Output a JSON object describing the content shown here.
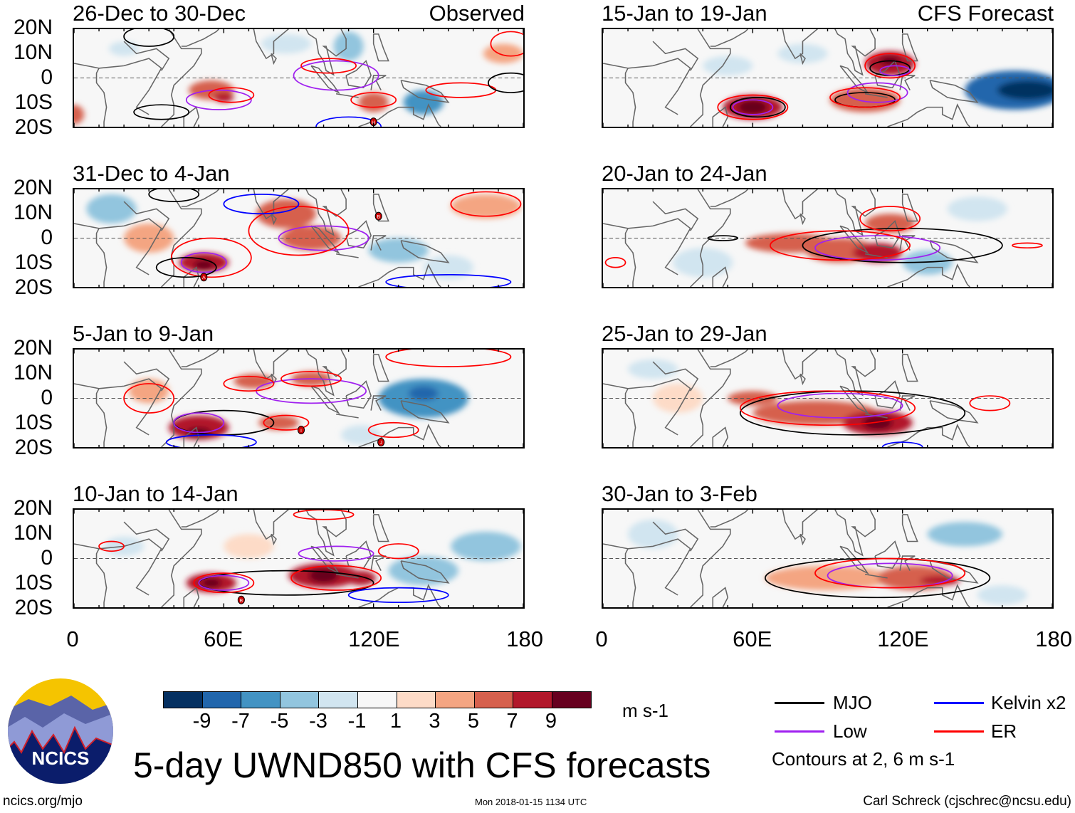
{
  "title": "5-day UWND850 with CFS forecasts",
  "footer": {
    "url": "ncics.org/mjo",
    "timestamp": "Mon 2018-01-15 1134 UTC",
    "author": "Carl Schreck (cjschrec@ncsu.edu)",
    "logo_text": "NCICS"
  },
  "colorbar": {
    "units": "m s-1",
    "ticks": [
      "-9",
      "-7",
      "-5",
      "-3",
      "-1",
      "1",
      "3",
      "5",
      "7",
      "9"
    ],
    "colors": [
      "#053061",
      "#2166ac",
      "#4393c3",
      "#92c5de",
      "#d1e5f0",
      "#f7f7f7",
      "#fddbc7",
      "#f4a582",
      "#d6604d",
      "#b2182b",
      "#67001f"
    ]
  },
  "legend": {
    "items": [
      {
        "label": "MJO",
        "color": "#000000"
      },
      {
        "label": "Kelvin x2",
        "color": "#0000ff"
      },
      {
        "label": "Low",
        "color": "#a020f0"
      },
      {
        "label": "ER",
        "color": "#ff0000"
      }
    ],
    "note": "Contours at 2, 6 m s-1"
  },
  "axes": {
    "lat_labels": [
      "20N",
      "10N",
      "0",
      "10S",
      "20S"
    ],
    "lon_labels": [
      "0",
      "60E",
      "120E",
      "180"
    ],
    "lon_range": [
      0,
      180
    ],
    "lat_range": [
      -20,
      20
    ]
  },
  "panels": [
    {
      "title": "26-Dec to 30-Dec",
      "tag": "Observed",
      "blobs": [
        [
          55,
          -5,
          9,
          4,
          5
        ],
        [
          60,
          -8,
          4,
          2,
          8
        ],
        [
          120,
          -10,
          6,
          4,
          6
        ],
        [
          0,
          -15,
          4,
          4,
          6
        ],
        [
          172,
          10,
          8,
          4,
          4
        ],
        [
          110,
          13,
          6,
          6,
          -5
        ],
        [
          140,
          -10,
          8,
          5,
          -6
        ],
        [
          20,
          12,
          6,
          3,
          -3
        ],
        [
          85,
          14,
          10,
          4,
          -2
        ]
      ],
      "contours": [
        [
          "low",
          58,
          -9,
          13,
          4
        ],
        [
          "low",
          105,
          1,
          17,
          6
        ],
        [
          "er",
          63,
          -7,
          9,
          3
        ],
        [
          "er",
          102,
          5,
          11,
          3
        ],
        [
          "er",
          120,
          -9,
          9,
          3
        ],
        [
          "er",
          155,
          -5,
          14,
          3
        ],
        [
          "mjo",
          35,
          -14,
          11,
          3
        ],
        [
          "mjo",
          175,
          -2,
          9,
          4
        ],
        [
          "mjo",
          30,
          17,
          10,
          4
        ],
        [
          "kelvin",
          110,
          -20,
          13,
          4
        ],
        [
          "er",
          175,
          14,
          8,
          5
        ]
      ],
      "markers": [
        [
          120,
          -18,
          "H"
        ]
      ]
    },
    {
      "title": "31-Dec to 4-Jan",
      "tag": "",
      "blobs": [
        [
          85,
          10,
          12,
          6,
          6
        ],
        [
          95,
          0,
          12,
          5,
          6
        ],
        [
          52,
          -10,
          10,
          4,
          7
        ],
        [
          52,
          -11,
          4,
          2,
          9
        ],
        [
          30,
          0,
          10,
          6,
          3
        ],
        [
          165,
          13,
          14,
          5,
          4
        ],
        [
          15,
          12,
          10,
          6,
          -5
        ],
        [
          130,
          -5,
          12,
          5,
          -4
        ],
        [
          150,
          -12,
          10,
          5,
          -3
        ]
      ],
      "contours": [
        [
          "low",
          52,
          -10,
          9,
          4
        ],
        [
          "low",
          100,
          0,
          18,
          5
        ],
        [
          "er",
          55,
          -8,
          16,
          8
        ],
        [
          "er",
          90,
          3,
          20,
          10
        ],
        [
          "er",
          165,
          14,
          14,
          5
        ],
        [
          "mjo",
          45,
          -12,
          12,
          4
        ],
        [
          "mjo",
          40,
          18,
          10,
          3
        ],
        [
          "kelvin",
          75,
          14,
          15,
          4
        ],
        [
          "kelvin",
          150,
          -18,
          25,
          3
        ]
      ],
      "markers": [
        [
          122,
          9,
          "B"
        ],
        [
          52,
          -16,
          "A"
        ]
      ]
    },
    {
      "title": "5-Jan to 9-Jan",
      "tag": "",
      "blobs": [
        [
          50,
          -12,
          12,
          5,
          7
        ],
        [
          50,
          -14,
          5,
          2,
          9
        ],
        [
          72,
          7,
          8,
          3,
          5
        ],
        [
          95,
          8,
          8,
          3,
          5
        ],
        [
          82,
          -10,
          8,
          3,
          5
        ],
        [
          30,
          3,
          8,
          5,
          3
        ],
        [
          140,
          0,
          18,
          8,
          -6
        ],
        [
          140,
          2,
          6,
          3,
          -9
        ],
        [
          115,
          -15,
          8,
          4,
          -3
        ]
      ],
      "contours": [
        [
          "mjo",
          60,
          -10,
          20,
          5
        ],
        [
          "low",
          50,
          -10,
          10,
          4
        ],
        [
          "low",
          95,
          3,
          22,
          5
        ],
        [
          "er",
          70,
          6,
          10,
          3
        ],
        [
          "er",
          95,
          8,
          12,
          3
        ],
        [
          "er",
          30,
          0,
          10,
          6
        ],
        [
          "er",
          85,
          -10,
          9,
          3
        ],
        [
          "er",
          128,
          -13,
          10,
          3
        ],
        [
          "kelvin",
          55,
          -18,
          18,
          3
        ],
        [
          "er",
          150,
          17,
          25,
          4
        ]
      ],
      "markers": [
        [
          91,
          -13,
          "I"
        ],
        [
          123,
          -18,
          "J"
        ]
      ]
    },
    {
      "title": "10-Jan to 14-Jan",
      "tag": "",
      "blobs": [
        [
          55,
          -10,
          10,
          4,
          7
        ],
        [
          55,
          -10,
          4,
          2,
          9
        ],
        [
          100,
          -7,
          14,
          5,
          7
        ],
        [
          100,
          -7,
          6,
          3,
          9
        ],
        [
          115,
          -8,
          6,
          3,
          7
        ],
        [
          140,
          -5,
          14,
          6,
          -4
        ],
        [
          165,
          5,
          14,
          6,
          -4
        ],
        [
          20,
          5,
          8,
          4,
          -3
        ],
        [
          70,
          5,
          10,
          5,
          2
        ]
      ],
      "contours": [
        [
          "mjo",
          85,
          -10,
          35,
          5
        ],
        [
          "low",
          60,
          -10,
          10,
          3
        ],
        [
          "low",
          105,
          2,
          15,
          3
        ],
        [
          "er",
          60,
          -10,
          12,
          4
        ],
        [
          "er",
          105,
          -8,
          18,
          5
        ],
        [
          "er",
          130,
          3,
          8,
          3
        ],
        [
          "kelvin",
          130,
          -15,
          20,
          3
        ],
        [
          "er",
          100,
          18,
          12,
          2
        ],
        [
          "er",
          15,
          5,
          5,
          2
        ]
      ],
      "markers": [
        [
          67,
          -17,
          "B"
        ]
      ]
    },
    {
      "title": "15-Jan to 19-Jan",
      "tag": "CFS Forecast",
      "blobs": [
        [
          60,
          -12,
          12,
          5,
          8
        ],
        [
          60,
          -12,
          6,
          3,
          10
        ],
        [
          105,
          -9,
          14,
          5,
          6
        ],
        [
          115,
          6,
          10,
          5,
          7
        ],
        [
          115,
          7,
          4,
          2,
          9
        ],
        [
          165,
          -5,
          20,
          8,
          -8
        ],
        [
          170,
          -5,
          12,
          4,
          -10
        ],
        [
          50,
          5,
          10,
          4,
          -3
        ],
        [
          80,
          10,
          10,
          4,
          -2
        ]
      ],
      "contours": [
        [
          "mjo",
          62,
          -12,
          11,
          4
        ],
        [
          "mjo",
          105,
          -9,
          12,
          3
        ],
        [
          "mjo",
          115,
          4,
          8,
          3
        ],
        [
          "low",
          60,
          -12,
          8,
          3
        ],
        [
          "low",
          110,
          -6,
          12,
          4
        ],
        [
          "low",
          117,
          3,
          6,
          2
        ],
        [
          "er",
          60,
          -12,
          14,
          5
        ],
        [
          "er",
          105,
          -8,
          14,
          4
        ],
        [
          "er",
          115,
          5,
          10,
          5
        ]
      ],
      "markers": []
    },
    {
      "title": "20-Jan to 24-Jan",
      "tag": "",
      "blobs": [
        [
          75,
          -2,
          18,
          4,
          5
        ],
        [
          95,
          -5,
          14,
          5,
          6
        ],
        [
          110,
          -6,
          10,
          4,
          8
        ],
        [
          115,
          6,
          10,
          4,
          6
        ],
        [
          130,
          -10,
          10,
          5,
          -4
        ],
        [
          40,
          -10,
          12,
          6,
          -3
        ],
        [
          150,
          12,
          12,
          5,
          -2
        ]
      ],
      "contours": [
        [
          "mjo",
          120,
          -3,
          40,
          7
        ],
        [
          "mjo",
          48,
          0,
          6,
          1
        ],
        [
          "low",
          110,
          -4,
          25,
          5
        ],
        [
          "er",
          95,
          -3,
          28,
          6
        ],
        [
          "er",
          115,
          8,
          12,
          5
        ],
        [
          "er",
          5,
          -10,
          4,
          2
        ],
        [
          "er",
          170,
          -3,
          6,
          1
        ]
      ],
      "markers": []
    },
    {
      "title": "25-Jan to 29-Jan",
      "tag": "",
      "blobs": [
        [
          60,
          0,
          10,
          3,
          5
        ],
        [
          85,
          -6,
          25,
          5,
          6
        ],
        [
          110,
          -10,
          14,
          5,
          8
        ],
        [
          110,
          -10,
          6,
          3,
          9
        ],
        [
          30,
          0,
          10,
          6,
          2
        ],
        [
          20,
          12,
          10,
          4,
          -3
        ]
      ],
      "contours": [
        [
          "mjo",
          100,
          -6,
          45,
          9
        ],
        [
          "low",
          95,
          -3,
          25,
          5
        ],
        [
          "er",
          90,
          -4,
          35,
          7
        ],
        [
          "er",
          155,
          -2,
          8,
          3
        ],
        [
          "kelvin",
          120,
          -20,
          8,
          2
        ]
      ],
      "markers": []
    },
    {
      "title": "30-Jan to 3-Feb",
      "tag": "",
      "blobs": [
        [
          90,
          -8,
          25,
          5,
          4
        ],
        [
          125,
          -8,
          15,
          5,
          6
        ],
        [
          135,
          -9,
          8,
          2,
          8
        ],
        [
          145,
          10,
          15,
          5,
          -4
        ],
        [
          20,
          10,
          10,
          6,
          -3
        ],
        [
          160,
          -15,
          10,
          4,
          -2
        ]
      ],
      "contours": [
        [
          "mjo",
          110,
          -8,
          45,
          8
        ],
        [
          "low",
          115,
          -7,
          25,
          5
        ],
        [
          "er",
          115,
          -6,
          30,
          6
        ]
      ],
      "markers": []
    }
  ]
}
